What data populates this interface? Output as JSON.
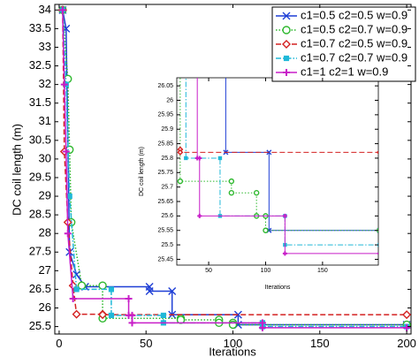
{
  "chart_data": [
    {
      "type": "line",
      "y_label": "DC coil length (m)",
      "x_label": "Iterations",
      "xlim": [
        -2.5,
        202.5
      ],
      "xticks": [
        0,
        50,
        100,
        150,
        200
      ],
      "ylim": [
        25.3,
        34.15
      ],
      "yticks": [
        25.5,
        26,
        26.5,
        27,
        27.5,
        28,
        28.5,
        29,
        29.5,
        30,
        30.5,
        31,
        31.5,
        32,
        32.5,
        33,
        33.5,
        34
      ],
      "legend": "upper right",
      "series": [
        {
          "name": "c1=0.5 c2=0.5 w=0.9",
          "color": "#1f3fd6",
          "dash": "solid",
          "marker": "x",
          "x": [
            2,
            4,
            6,
            10,
            15,
            52,
            52,
            65,
            65,
            103,
            103,
            200
          ],
          "values": [
            34,
            33.5,
            27.5,
            26.9,
            26.57,
            26.57,
            26.45,
            26.45,
            25.82,
            25.82,
            25.55,
            25.55
          ]
        },
        {
          "name": "c1=0.5 c2=0.7 w=0.9",
          "color": "#2eb82e",
          "dash": "dotted",
          "marker": "circle",
          "x": [
            2,
            5,
            6,
            7,
            13,
            25,
            25,
            70,
            70,
            92,
            92,
            100,
            100,
            200
          ],
          "values": [
            34,
            32.15,
            30.25,
            28.3,
            26.6,
            26.6,
            25.72,
            25.72,
            25.68,
            25.68,
            25.6,
            25.6,
            25.55,
            25.55
          ]
        },
        {
          "name": "c1=0.7 c2=0.5 w=0.9",
          "color": "#d42020",
          "dash": "dashed",
          "marker": "diamond",
          "x": [
            2,
            3,
            5,
            8,
            10,
            25,
            25,
            200
          ],
          "values": [
            34,
            30.2,
            28.3,
            26.6,
            25.83,
            25.83,
            25.82,
            25.82
          ]
        },
        {
          "name": "c1=0.7 c2=0.7 w=0.9",
          "color": "#20b8d8",
          "dash": "dashdot",
          "marker": "square",
          "x": [
            2,
            4,
            6,
            10,
            30,
            30,
            60,
            60,
            117,
            117,
            200
          ],
          "values": [
            34,
            32,
            29,
            26.5,
            26.5,
            25.8,
            25.8,
            25.6,
            25.6,
            25.5,
            25.5
          ]
        },
        {
          "name": "c1=1 c2=1 w=0.9",
          "color": "#c81ec8",
          "dash": "solid",
          "marker": "plus",
          "x": [
            2,
            3,
            4,
            5,
            8,
            40,
            40,
            42,
            42,
            117,
            117,
            200
          ],
          "values": [
            34,
            32,
            30.2,
            28,
            26.25,
            26.25,
            25.8,
            25.8,
            25.6,
            25.6,
            25.47,
            25.47
          ]
        }
      ]
    },
    {
      "type": "inset",
      "y_label": "DC coil length (m)",
      "x_label": "Iterations",
      "xlim": [
        22,
        199
      ],
      "xticks": [
        50,
        100,
        150
      ],
      "ylim": [
        25.43,
        26.078
      ],
      "yticks": [
        25.45,
        25.5,
        25.55,
        25.6,
        25.65,
        25.7,
        25.75,
        25.8,
        25.85,
        25.9,
        25.95,
        26,
        26.05
      ]
    }
  ]
}
